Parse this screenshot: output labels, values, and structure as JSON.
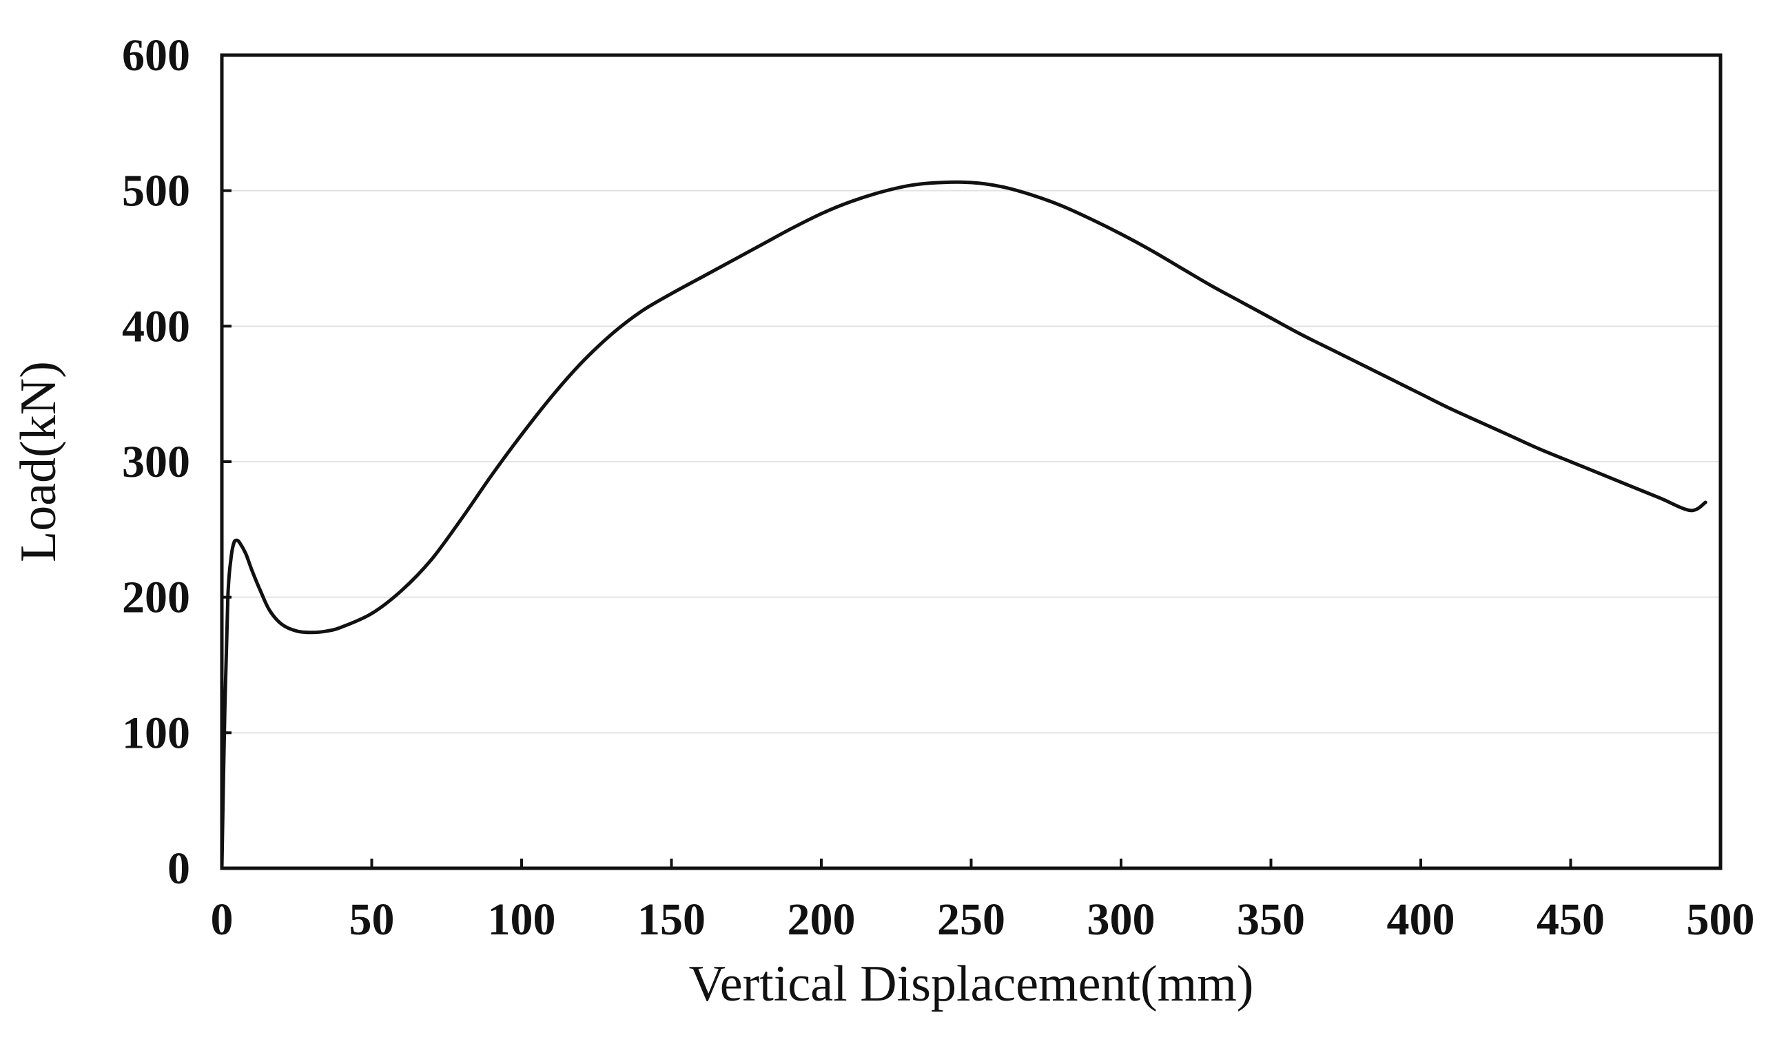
{
  "chart_data": {
    "type": "line",
    "title": "",
    "xlabel": "Vertical Displacement(mm)",
    "ylabel": "Load(kN)",
    "xlim": [
      0,
      500
    ],
    "ylim": [
      0,
      600
    ],
    "xticks": [
      0,
      50,
      100,
      150,
      200,
      250,
      300,
      350,
      400,
      450,
      500
    ],
    "yticks": [
      0,
      100,
      200,
      300,
      400,
      500,
      600
    ],
    "xtick_labels": [
      "0",
      "50",
      "100",
      "150",
      "200",
      "250",
      "300",
      "350",
      "400",
      "450",
      "500"
    ],
    "ytick_labels": [
      "0",
      "100",
      "200",
      "300",
      "400",
      "500",
      "600"
    ],
    "grid": "horizontal",
    "legend": "none",
    "series": [
      {
        "color": "#111111",
        "x": [
          0,
          1,
          2,
          3,
          4,
          5,
          6,
          8,
          10,
          13,
          16,
          20,
          25,
          30,
          35,
          40,
          50,
          60,
          70,
          80,
          90,
          100,
          110,
          120,
          130,
          140,
          150,
          160,
          170,
          180,
          190,
          200,
          210,
          220,
          230,
          240,
          250,
          260,
          270,
          280,
          290,
          300,
          310,
          320,
          330,
          340,
          350,
          360,
          370,
          380,
          390,
          400,
          410,
          420,
          430,
          440,
          450,
          460,
          470,
          480,
          490,
          495
        ],
        "y": [
          0,
          120,
          200,
          228,
          240,
          242,
          240,
          232,
          220,
          204,
          190,
          180,
          175,
          174,
          175,
          178,
          188,
          205,
          228,
          258,
          290,
          320,
          348,
          373,
          394,
          411,
          424,
          436,
          448,
          460,
          472,
          483,
          492,
          499,
          504,
          506,
          506,
          503,
          497,
          489,
          479,
          468,
          456,
          443,
          430,
          418,
          406,
          394,
          383,
          372,
          361,
          350,
          339,
          329,
          319,
          309,
          300,
          291,
          282,
          273,
          264,
          270
        ]
      }
    ]
  }
}
